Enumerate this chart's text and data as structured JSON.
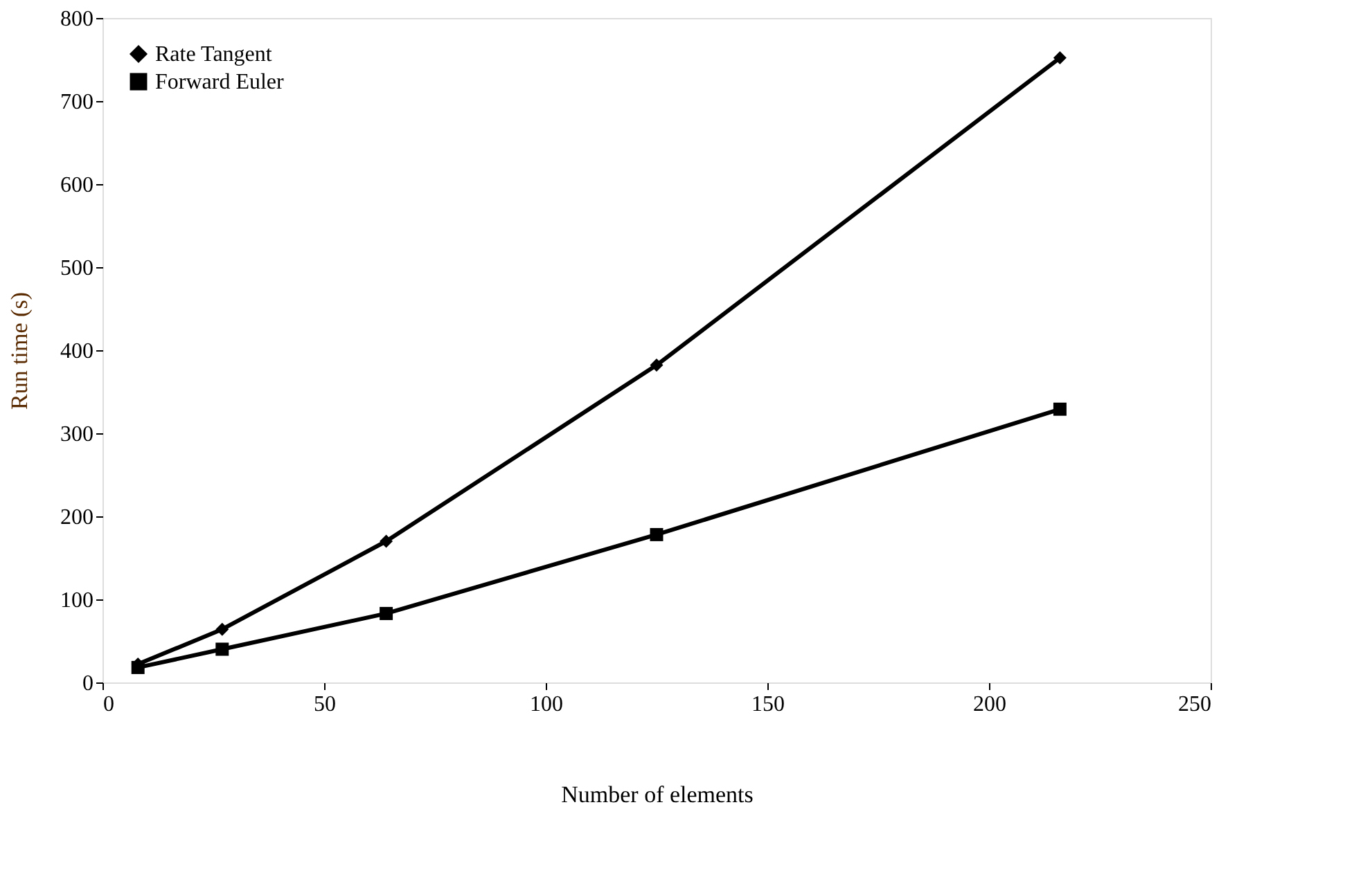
{
  "chart_data": {
    "type": "line",
    "xlabel": "Number of elements",
    "ylabel": "Run time (s)",
    "x": [
      8,
      27,
      64,
      125,
      216
    ],
    "series": [
      {
        "name": "Rate Tangent",
        "color": "#000000",
        "marker": "diamond",
        "values": [
          22,
          64,
          170,
          382,
          752
        ]
      },
      {
        "name": "Forward Euler",
        "color": "#000000",
        "marker": "square",
        "values": [
          18,
          40,
          83,
          178,
          329
        ]
      }
    ],
    "xlim": [
      0,
      250
    ],
    "xticks": [
      0,
      50,
      100,
      150,
      200,
      250
    ],
    "ylim": [
      0,
      800
    ],
    "yticks": [
      0,
      100,
      200,
      300,
      400,
      500,
      600,
      700,
      800
    ],
    "grid": false,
    "legend": "top left",
    "line_style": "solid"
  }
}
